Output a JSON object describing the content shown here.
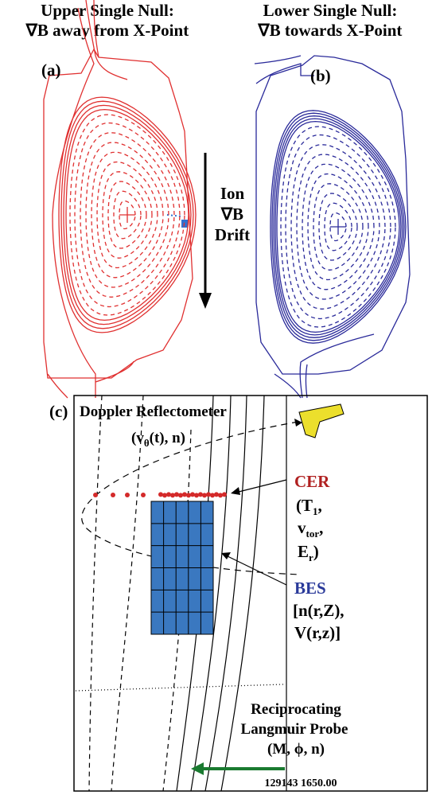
{
  "panel_a": {
    "label": "(a)",
    "title": [
      "Upper Single Null:",
      "∇B away from X-Point"
    ],
    "drift_label": [
      "Ion",
      "∇B",
      "Drift"
    ]
  },
  "panel_b": {
    "label": "(b)",
    "title": [
      "Lower Single Null:",
      "∇B towards X-Point"
    ]
  },
  "panel_c": {
    "label": "(c)",
    "doppler": {
      "title": "Doppler Reflectometer",
      "measures": [
        "(v",
        "θ",
        "(t), n)"
      ]
    },
    "cer": {
      "name": "CER",
      "lines": [
        [
          "(T",
          "1",
          ","
        ],
        [
          "v",
          "tor",
          ","
        ],
        [
          "E",
          "r",
          ")"
        ]
      ]
    },
    "bes": {
      "name": "BES",
      "lines": [
        "[n(r,Z),",
        "V(r,z)]"
      ]
    },
    "probe": {
      "lines": [
        "Reciprocating",
        "Langmuir Probe",
        "(M, ϕ, n)"
      ]
    },
    "shot": "129143 1650.00"
  }
}
